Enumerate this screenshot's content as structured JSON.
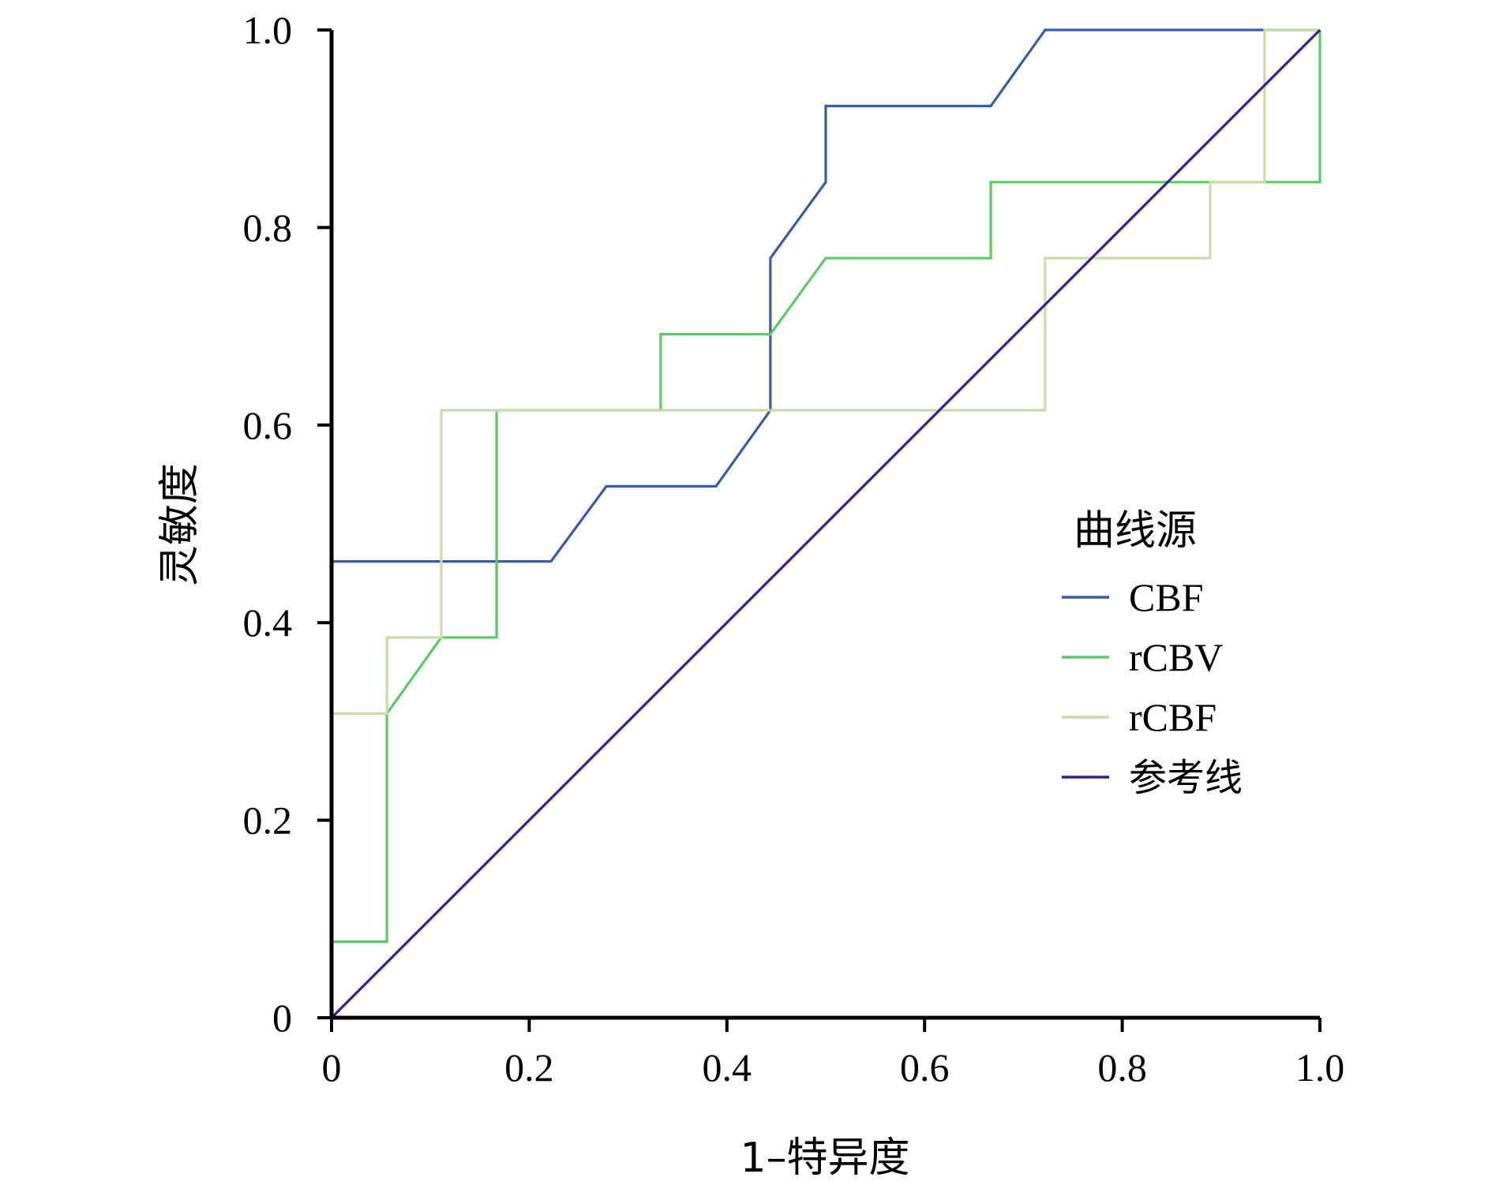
{
  "chart_data": {
    "type": "line",
    "title": "",
    "xlabel": "1–特异度",
    "ylabel": "灵敏度",
    "xlim": [
      0,
      1.0
    ],
    "ylim": [
      0,
      1.0
    ],
    "xticks": [
      "0",
      "0.2",
      "0.4",
      "0.6",
      "0.8",
      "1.0"
    ],
    "yticks": [
      "0",
      "0.2",
      "0.4",
      "0.6",
      "0.8",
      "1.0"
    ],
    "grid": false,
    "legend": {
      "title": "曲线源",
      "placement": "right"
    },
    "series": [
      {
        "name": "CBF",
        "color": "#3a5ca8",
        "points": [
          [
            0,
            0.462
          ],
          [
            0.222,
            0.462
          ],
          [
            0.278,
            0.538
          ],
          [
            0.389,
            0.538
          ],
          [
            0.444,
            0.615
          ],
          [
            0.444,
            0.769
          ],
          [
            0.5,
            0.846
          ],
          [
            0.5,
            0.923
          ],
          [
            0.667,
            0.923
          ],
          [
            0.722,
            1.0
          ],
          [
            1.0,
            1.0
          ]
        ]
      },
      {
        "name": "rCBV",
        "color": "#5fc86a",
        "points": [
          [
            0,
            0.077
          ],
          [
            0.056,
            0.077
          ],
          [
            0.056,
            0.308
          ],
          [
            0.111,
            0.385
          ],
          [
            0.167,
            0.385
          ],
          [
            0.167,
            0.615
          ],
          [
            0.333,
            0.615
          ],
          [
            0.333,
            0.692
          ],
          [
            0.444,
            0.692
          ],
          [
            0.5,
            0.769
          ],
          [
            0.667,
            0.769
          ],
          [
            0.667,
            0.846
          ],
          [
            1.0,
            0.846
          ],
          [
            1.0,
            1.0
          ]
        ]
      },
      {
        "name": "rCBF",
        "color": "#c8dca8",
        "points": [
          [
            0,
            0.308
          ],
          [
            0.056,
            0.308
          ],
          [
            0.056,
            0.385
          ],
          [
            0.111,
            0.385
          ],
          [
            0.111,
            0.615
          ],
          [
            0.722,
            0.615
          ],
          [
            0.722,
            0.769
          ],
          [
            0.889,
            0.769
          ],
          [
            0.889,
            0.846
          ],
          [
            0.944,
            0.846
          ],
          [
            0.944,
            1.0
          ],
          [
            1.0,
            1.0
          ]
        ]
      },
      {
        "name": "参考线",
        "color": "#3f1a8c",
        "points": [
          [
            0,
            0
          ],
          [
            1.0,
            1.0
          ]
        ]
      }
    ]
  }
}
